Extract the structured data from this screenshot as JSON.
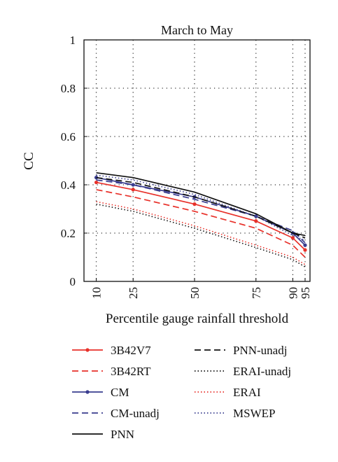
{
  "chart_data": {
    "type": "line",
    "title": "March to May",
    "xlabel": "Percentile gauge rainfall threshold",
    "ylabel": "CC",
    "x": [
      10,
      25,
      50,
      75,
      90,
      95
    ],
    "x_tick_labels": [
      "10",
      "25",
      "50",
      "75",
      "90",
      "95"
    ],
    "y_tick_labels": [
      "0",
      "0.2",
      "0.4",
      "0.6",
      "0.8",
      "1"
    ],
    "xlim": [
      5,
      97
    ],
    "ylim": [
      0,
      1
    ],
    "grid": true,
    "legend_placement": "below-plot",
    "series": [
      {
        "name": "3B42V7",
        "color": "#e8312a",
        "dash": "solid",
        "marker": true,
        "values": [
          0.41,
          0.38,
          0.32,
          0.25,
          0.18,
          0.13
        ]
      },
      {
        "name": "3B42RT",
        "color": "#e8312a",
        "dash": "dashed",
        "marker": false,
        "values": [
          0.38,
          0.35,
          0.29,
          0.22,
          0.15,
          0.1
        ]
      },
      {
        "name": "CM",
        "color": "#3a3d8f",
        "dash": "solid",
        "marker": true,
        "values": [
          0.43,
          0.4,
          0.35,
          0.27,
          0.2,
          0.15
        ]
      },
      {
        "name": "CM-unadj",
        "color": "#3a3d8f",
        "dash": "dashed",
        "marker": false,
        "values": [
          0.42,
          0.4,
          0.34,
          0.27,
          0.21,
          0.16
        ]
      },
      {
        "name": "PNN",
        "color": "#111111",
        "dash": "solid",
        "marker": false,
        "values": [
          0.45,
          0.43,
          0.37,
          0.28,
          0.2,
          0.19
        ]
      },
      {
        "name": "PNN-unadj",
        "color": "#111111",
        "dash": "dashed",
        "marker": false,
        "values": [
          0.43,
          0.41,
          0.35,
          0.27,
          0.2,
          0.18
        ]
      },
      {
        "name": "ERAI-unadj",
        "color": "#111111",
        "dash": "dotted",
        "marker": false,
        "values": [
          0.32,
          0.29,
          0.22,
          0.14,
          0.09,
          0.06
        ]
      },
      {
        "name": "ERAI",
        "color": "#e8312a",
        "dash": "dotted",
        "marker": false,
        "values": [
          0.33,
          0.3,
          0.23,
          0.15,
          0.1,
          0.07
        ]
      },
      {
        "name": "MSWEP",
        "color": "#3a3d8f",
        "dash": "dotted",
        "marker": false,
        "values": [
          0.44,
          0.42,
          0.36,
          0.27,
          0.19,
          0.17
        ]
      }
    ]
  }
}
